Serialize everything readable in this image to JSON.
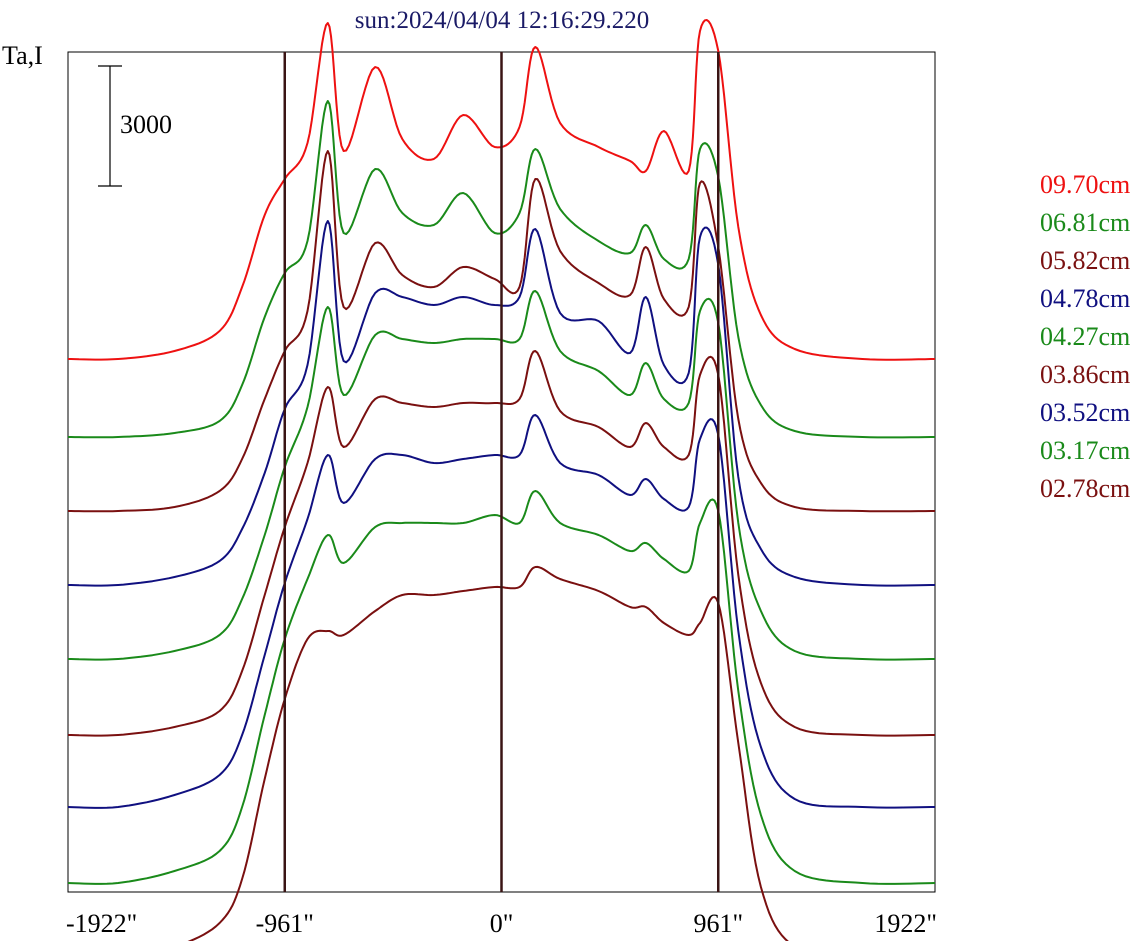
{
  "chart_data": {
    "type": "line",
    "title": "sun:2024/04/04 12:16:29.220",
    "ylabel": "Ta,I",
    "scale_bar_label": "3000",
    "x_tick_labels": [
      "-1922\"",
      "-961\"",
      "0\"",
      "961\"",
      "1922\""
    ],
    "x_ticks": [
      -1922,
      -961,
      0,
      961,
      1922
    ],
    "xlim": [
      -1922,
      1922
    ],
    "vertical_lines": [
      -961,
      0,
      961
    ],
    "grid": false,
    "legend_position": "right",
    "scale_bar_value": 3000,
    "series": [
      {
        "name": "09.70cm",
        "color": "#ee1111",
        "baseline": 0,
        "profile": {
          "x": [
            -1922,
            -1700,
            -1450,
            -1250,
            -1150,
            -1050,
            -961,
            -860,
            -770,
            -700,
            -560,
            -440,
            -300,
            -170,
            -30,
            80,
            150,
            260,
            430,
            570,
            640,
            720,
            830,
            880,
            961,
            1050,
            1150,
            1300,
            1600,
            1922
          ],
          "y": [
            0,
            0,
            200,
            700,
            1800,
            3600,
            4500,
            5400,
            8400,
            5200,
            7300,
            5500,
            5000,
            6100,
            5300,
            5800,
            7800,
            5900,
            5300,
            4950,
            4700,
            5700,
            4700,
            8200,
            7700,
            3300,
            1100,
            250,
            0,
            0
          ]
        }
      },
      {
        "name": "06.81cm",
        "color": "#1a8a1a",
        "baseline": -1950,
        "profile": {
          "x": [
            -1922,
            -1700,
            -1450,
            -1250,
            -1150,
            -1050,
            -961,
            -860,
            -770,
            -700,
            -560,
            -440,
            -300,
            -170,
            -30,
            80,
            150,
            260,
            430,
            570,
            640,
            720,
            830,
            880,
            961,
            1050,
            1150,
            1300,
            1600,
            1922
          ],
          "y": [
            0,
            0,
            100,
            400,
            1300,
            3000,
            4100,
            4900,
            8400,
            5100,
            6700,
            5600,
            5300,
            6100,
            5100,
            5600,
            7200,
            5700,
            4900,
            4600,
            5300,
            4450,
            4450,
            7200,
            6500,
            2500,
            800,
            150,
            0,
            0
          ]
        }
      },
      {
        "name": "05.82cm",
        "color": "#7a1010",
        "baseline": -3800,
        "profile": {
          "x": [
            -1922,
            -1700,
            -1450,
            -1250,
            -1150,
            -1050,
            -961,
            -860,
            -770,
            -700,
            -560,
            -440,
            -300,
            -170,
            -30,
            80,
            150,
            260,
            430,
            570,
            640,
            720,
            830,
            880,
            961,
            1050,
            1150,
            1300,
            1600,
            1922
          ],
          "y": [
            0,
            0,
            100,
            500,
            1300,
            2800,
            4000,
            5000,
            9000,
            5100,
            6700,
            5900,
            5600,
            6100,
            5800,
            5600,
            8300,
            6500,
            5700,
            5400,
            6600,
            5300,
            5100,
            8200,
            6600,
            2300,
            700,
            100,
            0,
            0
          ]
        }
      },
      {
        "name": "04.78cm",
        "color": "#101080",
        "baseline": -5650,
        "profile": {
          "x": [
            -1922,
            -1700,
            -1450,
            -1250,
            -1150,
            -1050,
            -961,
            -860,
            -770,
            -700,
            -560,
            -440,
            -300,
            -170,
            -30,
            80,
            150,
            260,
            430,
            570,
            640,
            720,
            830,
            880,
            961,
            1050,
            1150,
            1300,
            1600,
            1922
          ],
          "y": [
            0,
            0,
            200,
            600,
            1400,
            2800,
            4400,
            5500,
            9100,
            5600,
            7300,
            7200,
            7000,
            7200,
            7000,
            7200,
            8900,
            6800,
            6600,
            5800,
            7200,
            5500,
            5300,
            8700,
            8000,
            2700,
            900,
            200,
            0,
            0
          ]
        }
      },
      {
        "name": "04.27cm",
        "color": "#1a8a1a",
        "baseline": -7500,
        "profile": {
          "x": [
            -1922,
            -1700,
            -1450,
            -1250,
            -1150,
            -1050,
            -961,
            -860,
            -770,
            -700,
            -560,
            -440,
            -300,
            -170,
            -30,
            80,
            150,
            260,
            430,
            570,
            640,
            720,
            830,
            880,
            961,
            1050,
            1150,
            1300,
            1600,
            1922
          ],
          "y": [
            0,
            0,
            200,
            600,
            1500,
            3100,
            4800,
            6300,
            8800,
            6600,
            8100,
            8000,
            7900,
            8000,
            8000,
            8000,
            9200,
            7700,
            7200,
            6600,
            7400,
            6500,
            6400,
            8700,
            8400,
            3400,
            1200,
            200,
            0,
            0
          ]
        }
      },
      {
        "name": "03.86cm",
        "color": "#7a1010",
        "baseline": -9400,
        "profile": {
          "x": [
            -1922,
            -1700,
            -1450,
            -1250,
            -1150,
            -1050,
            -961,
            -860,
            -770,
            -700,
            -560,
            -440,
            -300,
            -170,
            -30,
            80,
            150,
            260,
            430,
            570,
            640,
            720,
            830,
            880,
            961,
            1050,
            1150,
            1300,
            1600,
            1922
          ],
          "y": [
            0,
            0,
            200,
            600,
            1600,
            3500,
            5200,
            6800,
            8700,
            7200,
            8400,
            8300,
            8200,
            8300,
            8300,
            8400,
            9600,
            8100,
            7700,
            7200,
            7800,
            7200,
            7000,
            9000,
            9000,
            4000,
            1300,
            200,
            0,
            0
          ]
        }
      },
      {
        "name": "03.52cm",
        "color": "#101080",
        "baseline": -11200,
        "profile": {
          "x": [
            -1922,
            -1700,
            -1450,
            -1250,
            -1150,
            -1050,
            -961,
            -860,
            -770,
            -700,
            -560,
            -440,
            -300,
            -170,
            -30,
            80,
            150,
            260,
            430,
            570,
            640,
            720,
            830,
            880,
            961,
            1050,
            1150,
            1300,
            1600,
            1922
          ],
          "y": [
            0,
            0,
            300,
            800,
            1800,
            3800,
            5600,
            7200,
            8800,
            7600,
            8700,
            8800,
            8600,
            8700,
            8800,
            8800,
            9800,
            8600,
            8300,
            7800,
            8200,
            7700,
            7500,
            9200,
            9300,
            4400,
            1500,
            200,
            0,
            0
          ]
        }
      },
      {
        "name": "03.17cm",
        "color": "#1a8a1a",
        "baseline": -13100,
        "profile": {
          "x": [
            -1922,
            -1700,
            -1450,
            -1250,
            -1150,
            -1050,
            -961,
            -860,
            -770,
            -700,
            -560,
            -440,
            -300,
            -170,
            -30,
            80,
            150,
            260,
            430,
            570,
            640,
            720,
            830,
            880,
            961,
            1050,
            1150,
            1300,
            1600,
            1922
          ],
          "y": [
            0,
            0,
            300,
            800,
            1900,
            4200,
            6100,
            7600,
            8700,
            8000,
            8900,
            9000,
            9000,
            9000,
            9200,
            9000,
            9800,
            9000,
            8700,
            8300,
            8500,
            8100,
            7800,
            9000,
            9300,
            4800,
            1700,
            300,
            0,
            0
          ]
        }
      },
      {
        "name": "02.78cm",
        "color": "#7a1010",
        "baseline": -15000,
        "profile": {
          "x": [
            -1922,
            -1700,
            -1450,
            -1250,
            -1150,
            -1050,
            -961,
            -860,
            -770,
            -700,
            -560,
            -440,
            -300,
            -170,
            -30,
            80,
            150,
            260,
            430,
            570,
            640,
            720,
            830,
            880,
            961,
            1050,
            1150,
            1300,
            1600,
            1922
          ],
          "y": [
            0,
            0,
            300,
            900,
            2000,
            4500,
            6500,
            8000,
            8200,
            8100,
            8700,
            9100,
            9100,
            9200,
            9300,
            9300,
            9800,
            9500,
            9200,
            8800,
            8800,
            8400,
            8100,
            8400,
            8900,
            5400,
            1800,
            300,
            0,
            0
          ]
        }
      }
    ]
  }
}
